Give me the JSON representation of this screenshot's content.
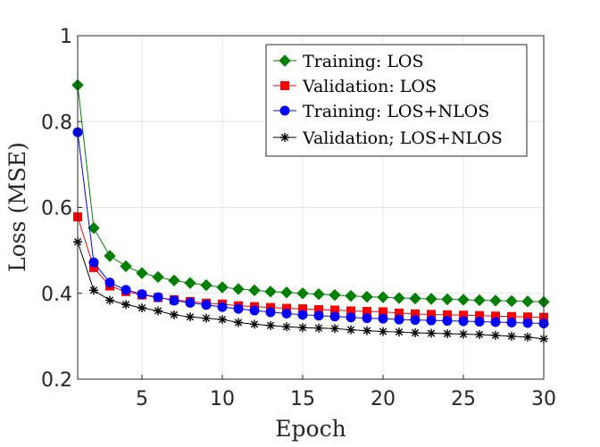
{
  "chart_data": {
    "type": "line",
    "title": "",
    "xlabel": "Epoch",
    "ylabel": "Loss (MSE)",
    "xlim": [
      1,
      30
    ],
    "ylim": [
      0.2,
      1.0
    ],
    "xticks": [
      5,
      10,
      15,
      20,
      25,
      30
    ],
    "yticks": [
      0.2,
      0.4,
      0.6,
      0.8,
      1.0
    ],
    "xtick_labels": [
      "5",
      "10",
      "15",
      "20",
      "25",
      "30"
    ],
    "ytick_labels": [
      "0.2",
      "0.4",
      "0.6",
      "0.8",
      "1"
    ],
    "grid": true,
    "legend_position": "top-right",
    "x": [
      1,
      2,
      3,
      4,
      5,
      6,
      7,
      8,
      9,
      10,
      11,
      12,
      13,
      14,
      15,
      16,
      17,
      18,
      19,
      20,
      21,
      22,
      23,
      24,
      25,
      26,
      27,
      28,
      29,
      30
    ],
    "series": [
      {
        "name": "Training: LOS",
        "color": "#008000",
        "marker": "diamond",
        "values": [
          0.885,
          0.552,
          0.487,
          0.463,
          0.447,
          0.438,
          0.43,
          0.424,
          0.419,
          0.414,
          0.41,
          0.407,
          0.404,
          0.402,
          0.4,
          0.398,
          0.396,
          0.394,
          0.392,
          0.391,
          0.389,
          0.388,
          0.387,
          0.386,
          0.385,
          0.384,
          0.383,
          0.382,
          0.381,
          0.38
        ]
      },
      {
        "name": "Validation:  LOS",
        "color": "#ff0000",
        "marker": "square",
        "values": [
          0.578,
          0.46,
          0.417,
          0.404,
          0.396,
          0.39,
          0.385,
          0.381,
          0.377,
          0.375,
          0.371,
          0.369,
          0.367,
          0.365,
          0.364,
          0.362,
          0.361,
          0.359,
          0.358,
          0.357,
          0.354,
          0.352,
          0.351,
          0.35,
          0.349,
          0.348,
          0.347,
          0.346,
          0.345,
          0.344
        ]
      },
      {
        "name": "Training:  LOS+NLOS",
        "color": "#0000ff",
        "marker": "circle",
        "values": [
          0.775,
          0.472,
          0.425,
          0.408,
          0.398,
          0.391,
          0.383,
          0.378,
          0.373,
          0.368,
          0.364,
          0.36,
          0.356,
          0.353,
          0.35,
          0.348,
          0.346,
          0.344,
          0.342,
          0.341,
          0.339,
          0.338,
          0.337,
          0.336,
          0.335,
          0.334,
          0.333,
          0.332,
          0.331,
          0.33
        ]
      },
      {
        "name": "Validation; LOS+NLOS",
        "color": "#000000",
        "marker": "asterisk",
        "values": [
          0.52,
          0.407,
          0.384,
          0.374,
          0.366,
          0.359,
          0.35,
          0.345,
          0.342,
          0.339,
          0.332,
          0.328,
          0.325,
          0.322,
          0.32,
          0.319,
          0.318,
          0.315,
          0.313,
          0.311,
          0.31,
          0.308,
          0.307,
          0.306,
          0.305,
          0.304,
          0.302,
          0.3,
          0.298,
          0.294
        ]
      }
    ]
  }
}
